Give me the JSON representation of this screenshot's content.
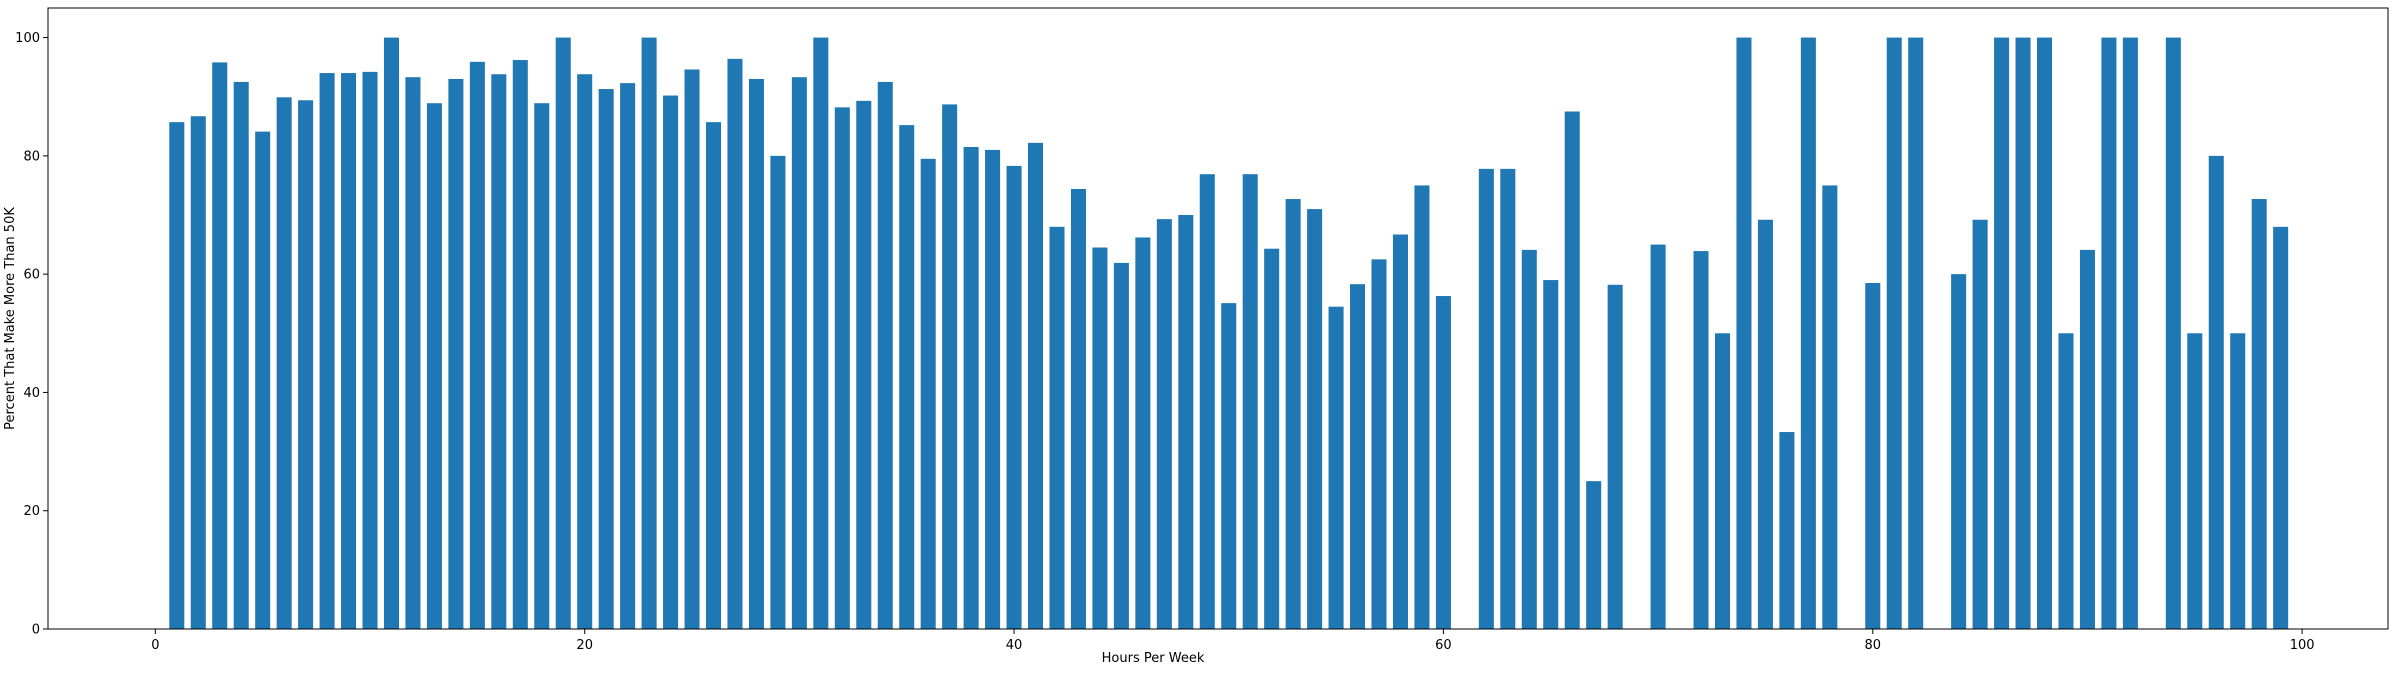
{
  "chart_data": {
    "type": "bar",
    "xlabel": "Hours Per Week",
    "ylabel": "Percent That Make More Than 50K",
    "xlim": [
      -5,
      104
    ],
    "ylim": [
      0,
      105
    ],
    "xticks": [
      0,
      20,
      40,
      60,
      80,
      100
    ],
    "yticks": [
      0,
      20,
      40,
      60,
      80,
      100
    ],
    "grid": false,
    "bar_color": "#1f77b4",
    "x": [
      1,
      2,
      3,
      4,
      5,
      6,
      7,
      8,
      9,
      10,
      11,
      12,
      13,
      14,
      15,
      16,
      17,
      18,
      19,
      20,
      21,
      22,
      23,
      24,
      25,
      26,
      27,
      28,
      29,
      30,
      31,
      32,
      33,
      34,
      35,
      36,
      37,
      38,
      39,
      40,
      41,
      42,
      43,
      44,
      45,
      46,
      47,
      48,
      49,
      50,
      51,
      52,
      53,
      54,
      55,
      56,
      57,
      58,
      59,
      60,
      62,
      63,
      64,
      65,
      66,
      67,
      68,
      70,
      72,
      73,
      74,
      75,
      76,
      77,
      78,
      80,
      81,
      82,
      84,
      85,
      86,
      87,
      88,
      89,
      90,
      91,
      92,
      94,
      95,
      96,
      97,
      98,
      99
    ],
    "values": [
      85.7,
      86.7,
      95.8,
      92.5,
      84.1,
      89.9,
      89.4,
      94.0,
      94.0,
      94.2,
      100,
      93.3,
      88.9,
      93.0,
      95.9,
      93.8,
      96.2,
      88.9,
      100,
      93.8,
      91.3,
      92.3,
      100,
      90.2,
      94.6,
      85.7,
      96.4,
      93.0,
      80.0,
      93.3,
      100,
      88.2,
      89.3,
      92.5,
      85.2,
      79.5,
      88.7,
      81.5,
      81.0,
      78.3,
      82.2,
      68.0,
      74.4,
      64.5,
      61.9,
      66.2,
      69.3,
      70.0,
      76.9,
      55.1,
      76.9,
      64.3,
      72.7,
      71.0,
      54.5,
      58.3,
      62.5,
      66.7,
      75.0,
      56.3,
      77.8,
      77.8,
      64.1,
      59.0,
      87.5,
      25.0,
      58.2,
      65.0,
      63.9,
      50.0,
      100,
      69.2,
      33.3,
      100,
      75.0,
      58.5,
      100,
      100,
      60.0,
      69.2,
      100,
      100,
      100,
      50.0,
      64.1,
      100,
      100,
      100,
      50.0,
      80.0,
      50.0,
      72.7,
      68.0
    ]
  }
}
